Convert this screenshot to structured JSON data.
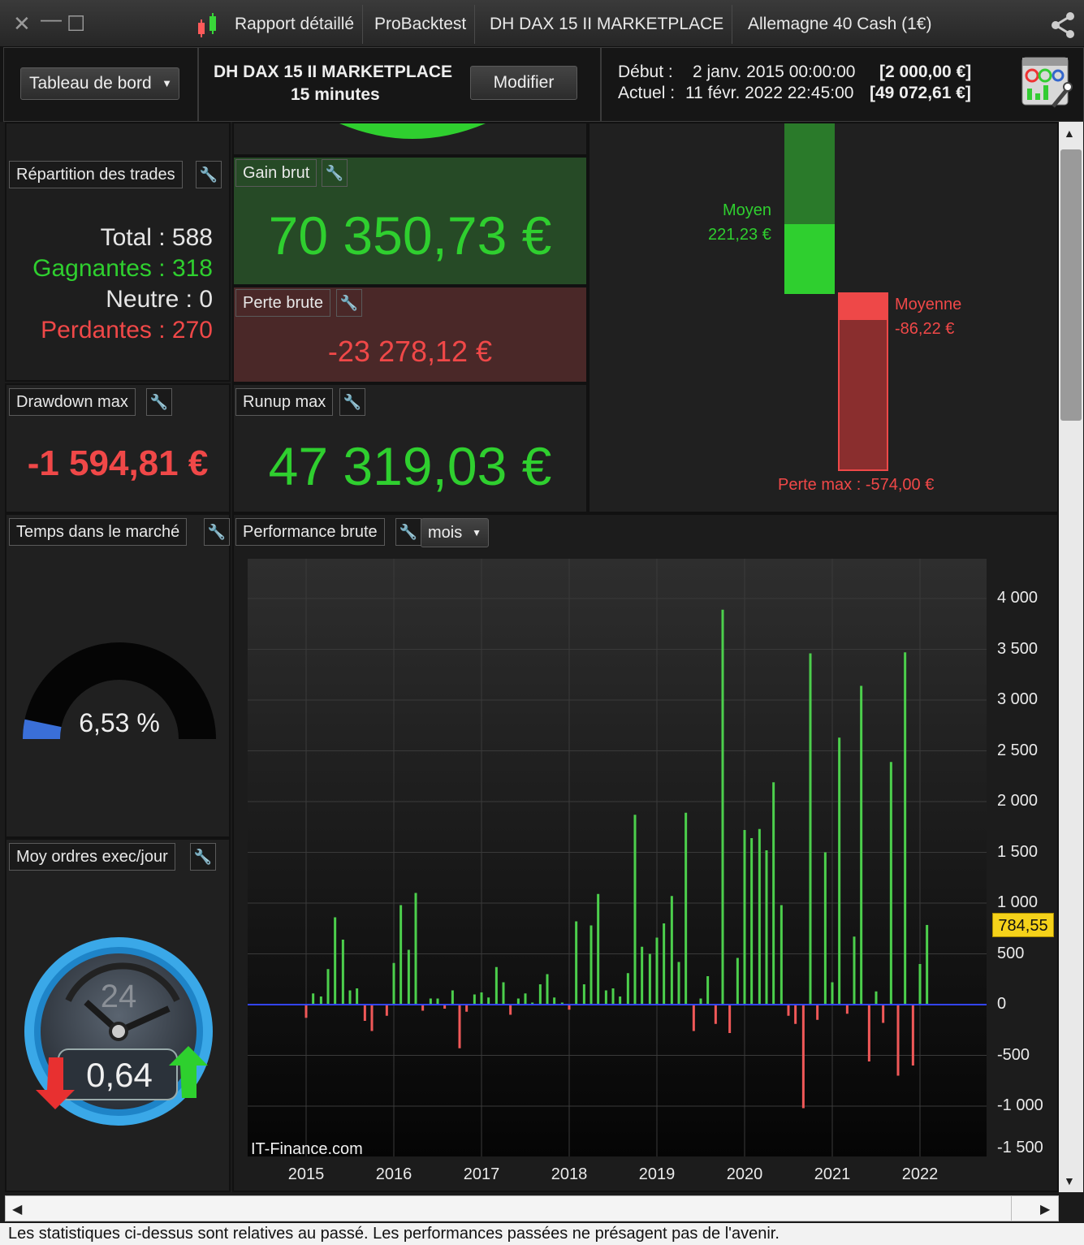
{
  "titlebar": {
    "tabs": [
      "Rapport détaillé",
      "ProBacktest",
      "DH DAX 15 II MARKETPLACE",
      "Allemagne 40 Cash (1€)"
    ],
    "icons": [
      "close-icon",
      "minimize-icon",
      "maximize-icon",
      "candlestick-icon",
      "share-icon"
    ]
  },
  "header": {
    "dropdown_label": "Tableau de bord",
    "system_name": "DH DAX 15 II MARKETPLACE",
    "timeframe": "15 minutes",
    "modify_label": "Modifier",
    "start_label": "Début :",
    "start_date": "2 janv. 2015 00:00:00",
    "start_value": "[2 000,00 €]",
    "current_label": "Actuel :",
    "current_date": "11 févr. 2022 22:45:00",
    "current_value": "[49 072,61 €]"
  },
  "trades": {
    "title": "Répartition des trades",
    "total": "Total : 588",
    "winners": "Gagnantes : 318",
    "neutral": "Neutre : 0",
    "losers": "Perdantes : 270"
  },
  "gross_gain": {
    "title": "Gain brut",
    "value": "70 350,73 €"
  },
  "gross_loss": {
    "title": "Perte brute",
    "value": "-23 278,12 €"
  },
  "drawdown": {
    "title": "Drawdown max",
    "value": "-1 594,81 €"
  },
  "runup": {
    "title": "Runup max",
    "value": "47 319,03 €"
  },
  "time_in_market": {
    "title": "Temps dans le marché",
    "value": "6,53 %",
    "fraction": 0.0653
  },
  "orders": {
    "title": "Moy ordres exec/jour",
    "value": "0,64",
    "dial_number": "24"
  },
  "avg_trades": {
    "avg_gain_label": "Moyen",
    "avg_gain_value": "221,23 €",
    "avg_loss_label": "Moyenne",
    "avg_loss_value": "-86,22 €",
    "max_loss_label": "Perte max : -574,00 €"
  },
  "performance": {
    "title": "Performance brute",
    "period": "mois",
    "watermark": "IT-Finance.com",
    "last_value_label": "784,55"
  },
  "chart_data": {
    "type": "bar",
    "title": "Performance brute",
    "x_tick_labels": [
      "2015",
      "2016",
      "2017",
      "2018",
      "2019",
      "2020",
      "2021",
      "2022"
    ],
    "y_tick_labels": [
      "4 000",
      "3 500",
      "3 000",
      "2 500",
      "2 000",
      "1 500",
      "1 000",
      "500",
      "0",
      "-500",
      "-1 000",
      "-1 500"
    ],
    "ylim": [
      -1500,
      4000
    ],
    "x_range": [
      2014.35,
      2022.75
    ],
    "colors": {
      "positive": "#4ccf4c",
      "negative": "#f05858",
      "zero_line": "#3344ff"
    },
    "bars": [
      {
        "x": 2015.0,
        "v": -130
      },
      {
        "x": 2015.08,
        "v": 110
      },
      {
        "x": 2015.17,
        "v": 80
      },
      {
        "x": 2015.25,
        "v": 350
      },
      {
        "x": 2015.33,
        "v": 860
      },
      {
        "x": 2015.42,
        "v": 640
      },
      {
        "x": 2015.5,
        "v": 140
      },
      {
        "x": 2015.58,
        "v": 160
      },
      {
        "x": 2015.67,
        "v": -160
      },
      {
        "x": 2015.75,
        "v": -260
      },
      {
        "x": 2015.92,
        "v": -110
      },
      {
        "x": 2016.0,
        "v": 410
      },
      {
        "x": 2016.08,
        "v": 980
      },
      {
        "x": 2016.17,
        "v": 540
      },
      {
        "x": 2016.25,
        "v": 1100
      },
      {
        "x": 2016.33,
        "v": -60
      },
      {
        "x": 2016.42,
        "v": 60
      },
      {
        "x": 2016.5,
        "v": 60
      },
      {
        "x": 2016.58,
        "v": -40
      },
      {
        "x": 2016.67,
        "v": 140
      },
      {
        "x": 2016.75,
        "v": -430
      },
      {
        "x": 2016.83,
        "v": -70
      },
      {
        "x": 2016.92,
        "v": 100
      },
      {
        "x": 2017.0,
        "v": 120
      },
      {
        "x": 2017.08,
        "v": 70
      },
      {
        "x": 2017.17,
        "v": 370
      },
      {
        "x": 2017.25,
        "v": 220
      },
      {
        "x": 2017.33,
        "v": -100
      },
      {
        "x": 2017.42,
        "v": 60
      },
      {
        "x": 2017.5,
        "v": 110
      },
      {
        "x": 2017.58,
        "v": 20
      },
      {
        "x": 2017.67,
        "v": 200
      },
      {
        "x": 2017.75,
        "v": 300
      },
      {
        "x": 2017.83,
        "v": 70
      },
      {
        "x": 2017.92,
        "v": 20
      },
      {
        "x": 2018.0,
        "v": -50
      },
      {
        "x": 2018.08,
        "v": 820
      },
      {
        "x": 2018.17,
        "v": 200
      },
      {
        "x": 2018.25,
        "v": 780
      },
      {
        "x": 2018.33,
        "v": 1090
      },
      {
        "x": 2018.42,
        "v": 140
      },
      {
        "x": 2018.5,
        "v": 160
      },
      {
        "x": 2018.58,
        "v": 80
      },
      {
        "x": 2018.67,
        "v": 310
      },
      {
        "x": 2018.75,
        "v": 1870
      },
      {
        "x": 2018.83,
        "v": 570
      },
      {
        "x": 2018.92,
        "v": 500
      },
      {
        "x": 2019.0,
        "v": 660
      },
      {
        "x": 2019.08,
        "v": 800
      },
      {
        "x": 2019.17,
        "v": 1070
      },
      {
        "x": 2019.25,
        "v": 420
      },
      {
        "x": 2019.33,
        "v": 1890
      },
      {
        "x": 2019.42,
        "v": -260
      },
      {
        "x": 2019.5,
        "v": 60
      },
      {
        "x": 2019.58,
        "v": 280
      },
      {
        "x": 2019.67,
        "v": -190
      },
      {
        "x": 2019.75,
        "v": 3890
      },
      {
        "x": 2019.83,
        "v": -280
      },
      {
        "x": 2019.92,
        "v": 460
      },
      {
        "x": 2020.0,
        "v": 1720
      },
      {
        "x": 2020.08,
        "v": 1640
      },
      {
        "x": 2020.17,
        "v": 1730
      },
      {
        "x": 2020.25,
        "v": 1520
      },
      {
        "x": 2020.33,
        "v": 2190
      },
      {
        "x": 2020.42,
        "v": 980
      },
      {
        "x": 2020.5,
        "v": -110
      },
      {
        "x": 2020.58,
        "v": -190
      },
      {
        "x": 2020.67,
        "v": -1020
      },
      {
        "x": 2020.75,
        "v": 3460
      },
      {
        "x": 2020.83,
        "v": -150
      },
      {
        "x": 2020.92,
        "v": 1500
      },
      {
        "x": 2021.0,
        "v": 220
      },
      {
        "x": 2021.08,
        "v": 2630
      },
      {
        "x": 2021.17,
        "v": -90
      },
      {
        "x": 2021.25,
        "v": 670
      },
      {
        "x": 2021.33,
        "v": 3140
      },
      {
        "x": 2021.42,
        "v": -560
      },
      {
        "x": 2021.5,
        "v": 130
      },
      {
        "x": 2021.58,
        "v": -180
      },
      {
        "x": 2021.67,
        "v": 2390
      },
      {
        "x": 2021.75,
        "v": -700
      },
      {
        "x": 2021.83,
        "v": 3470
      },
      {
        "x": 2021.92,
        "v": -600
      },
      {
        "x": 2022.0,
        "v": 400
      },
      {
        "x": 2022.08,
        "v": 784.55
      }
    ]
  }
}
